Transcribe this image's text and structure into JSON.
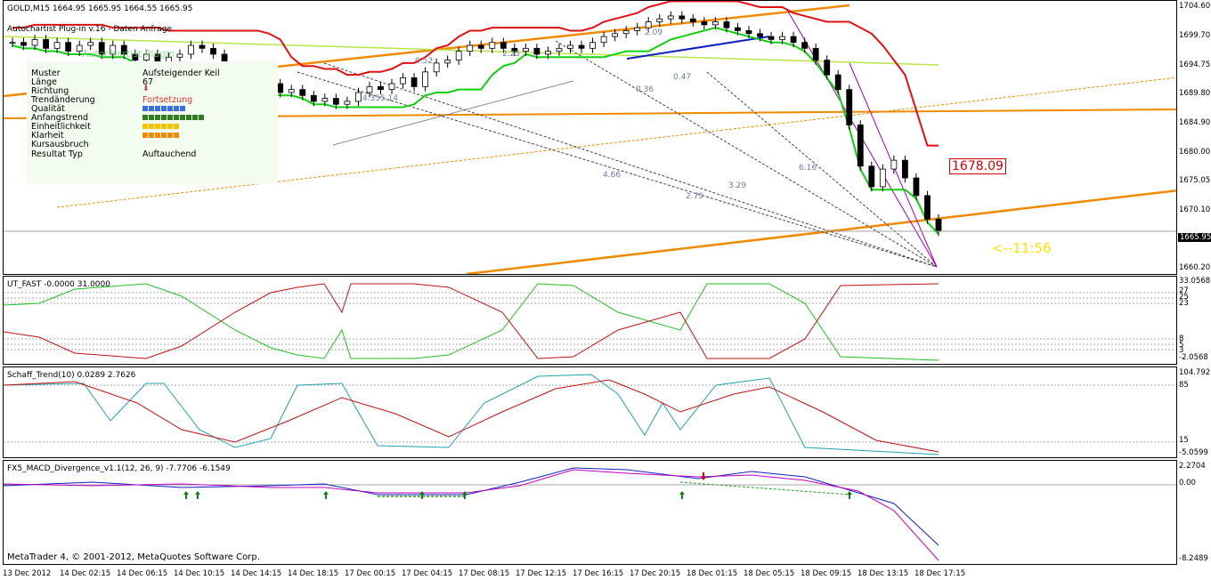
{
  "header": {
    "symbol_line": "GOLD,M15  1664.95 1665.95 1664.55 1665.95",
    "plugin_line": "Autochartist Plug-in v.16 - Daten Anfrage",
    "watermark": "Autochartist Plugin"
  },
  "info_panel": {
    "rows": [
      {
        "label": "Muster",
        "value": "Aufsteigender Keil"
      },
      {
        "label": "Länge",
        "value": "67"
      },
      {
        "label": "Richtung",
        "value": ""
      },
      {
        "label": "Trendänderung",
        "value": "Fortsetzung"
      },
      {
        "label": "Qualität",
        "value": ""
      },
      {
        "label": "Anfangstrend",
        "value": ""
      },
      {
        "label": "Einheitlichkeit",
        "value": ""
      },
      {
        "label": "Klarheit",
        "value": ""
      },
      {
        "label": "Kursausbruch",
        "value": ""
      },
      {
        "label": "Resultat Typ",
        "value": "Auftauchend"
      }
    ],
    "bar_levels": {
      "qualitaet": 7,
      "anfangstrend": 10,
      "einheitlichkeit": 6,
      "klarheit": 6
    },
    "colors": {
      "qualitaet": "#3a6fe0",
      "anfangstrend": "#2f7d1e",
      "einheitlichkeit": "#f5c400",
      "klarheit": "#f08a00",
      "fortsetzung": "#e03030"
    }
  },
  "price_pane": {
    "y_ticks": [
      "1704.60",
      "1699.70",
      "1694.75",
      "1689.80",
      "1684.90",
      "1680.00",
      "1675.05",
      "1670.10",
      "1665.20",
      "1660.20"
    ],
    "current_price": "1665.95",
    "target_label": "1678.09",
    "countdown": "<--11:56",
    "fib_labels": [
      "2.09",
      "0.52",
      "2.25",
      "0.36",
      "0.47",
      "4.66",
      "3.29",
      "6.16",
      "4.35",
      "5.14",
      "2.79"
    ]
  },
  "ut_fast": {
    "title": "UT_FAST -0.0000 31.0000",
    "y_ticks": [
      "33.0568",
      "27",
      "25",
      "23",
      "8",
      "5",
      "3",
      "-2.0568"
    ]
  },
  "schaff": {
    "title": "Schaff_Trend(10) 0.0289 2.7626",
    "y_ticks": [
      "104.7921",
      "85",
      "15",
      "-5.0599"
    ]
  },
  "macd": {
    "title": "FX5_MACD_Divergence_v1.1(12, 26, 9) -7.7706 -6.1549",
    "y_ticks": [
      "2.2704",
      "0.00",
      "-8.2489"
    ]
  },
  "footer": {
    "copyright": "MetaTrader 4, © 2001-2012, MetaQuotes Software Corp."
  },
  "x_axis": [
    "13 Dec 2012",
    "14 Dec 02:15",
    "14 Dec 06:15",
    "14 Dec 10:15",
    "14 Dec 14:15",
    "14 Dec 18:15",
    "17 Dec 00:15",
    "17 Dec 04:15",
    "17 Dec 08:15",
    "17 Dec 12:15",
    "17 Dec 16:15",
    "17 Dec 20:15",
    "18 Dec 01:15",
    "18 Dec 05:15",
    "18 Dec 09:15",
    "18 Dec 13:15",
    "18 Dec 17:15"
  ],
  "chart_data": {
    "type": "line",
    "ylim": [
      1660.2,
      1704.6
    ],
    "close_series": [
      1698,
      1697.5,
      1698.5,
      1697,
      1698,
      1696.5,
      1697.5,
      1698,
      1696,
      1697.5,
      1696,
      1695,
      1696,
      1694.5,
      1695.5,
      1696,
      1697.5,
      1697,
      1696,
      1693,
      1690.5,
      1691.5,
      1690,
      1691,
      1689.5,
      1690,
      1689,
      1688,
      1688.5,
      1687.5,
      1688,
      1689.5,
      1690.5,
      1690,
      1691,
      1692,
      1690.5,
      1693,
      1694.5,
      1695,
      1696.5,
      1697.5,
      1697,
      1698,
      1697,
      1696.5,
      1697,
      1696,
      1696.5,
      1697,
      1697.5,
      1697,
      1698,
      1699,
      1699.5,
      1700,
      1700.5,
      1701.5,
      1702,
      1702.5,
      1702,
      1701.5,
      1701,
      1701.5,
      1700.5,
      1700,
      1699.5,
      1699,
      1698.5,
      1699,
      1698,
      1697,
      1695,
      1692.5,
      1690,
      1684,
      1677,
      1673.5,
      1676.5,
      1678,
      1675,
      1672,
      1668,
      1665.95
    ],
    "series": []
  }
}
